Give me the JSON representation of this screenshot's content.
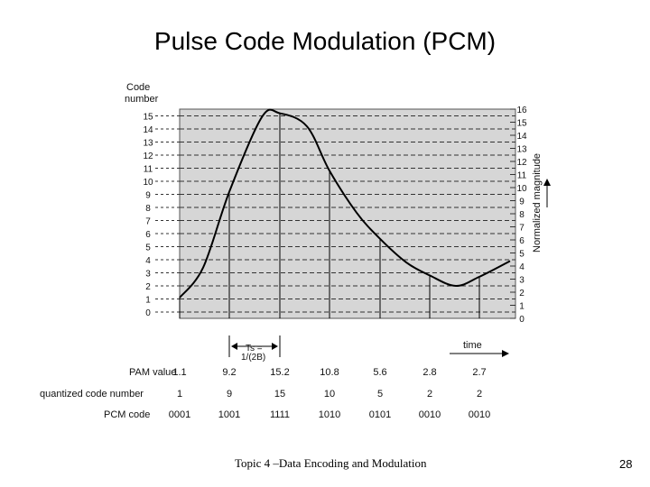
{
  "slide": {
    "title": "Pulse Code Modulation (PCM)",
    "footer": "Topic 4 –Data Encoding and Modulation",
    "page_number": "28"
  },
  "diagram": {
    "left_axis_title_line1": "Code",
    "left_axis_title_line2": "number",
    "right_axis_title": "Normalized magnitude",
    "time_label": "time",
    "ts_label_line1": "Ts =",
    "ts_label_line2": "1/(2B)",
    "code_levels": [
      "0",
      "1",
      "2",
      "3",
      "4",
      "5",
      "6",
      "7",
      "8",
      "9",
      "10",
      "11",
      "12",
      "13",
      "14",
      "15"
    ],
    "magnitude_levels": [
      "0",
      "1",
      "2",
      "3",
      "4",
      "5",
      "6",
      "7",
      "8",
      "9",
      "10",
      "11",
      "12",
      "13",
      "14",
      "15",
      "16"
    ],
    "row_labels": {
      "pam": "PAM value",
      "quantized": "quantized code number",
      "pcm": "PCM code"
    },
    "samples": [
      {
        "pam": "1.1",
        "pam_value": 1.1,
        "quantized": "1",
        "pcm": "0001"
      },
      {
        "pam": "9.2",
        "pam_value": 9.2,
        "quantized": "9",
        "pcm": "1001"
      },
      {
        "pam": "15.2",
        "pam_value": 15.2,
        "quantized": "15",
        "pcm": "1111"
      },
      {
        "pam": "10.8",
        "pam_value": 10.8,
        "quantized": "10",
        "pcm": "1010"
      },
      {
        "pam": "5.6",
        "pam_value": 5.6,
        "quantized": "5",
        "pcm": "0101"
      },
      {
        "pam": "2.8",
        "pam_value": 2.8,
        "quantized": "2",
        "pcm": "0010"
      },
      {
        "pam": "2.7",
        "pam_value": 2.7,
        "quantized": "2",
        "pcm": "0010"
      }
    ]
  }
}
